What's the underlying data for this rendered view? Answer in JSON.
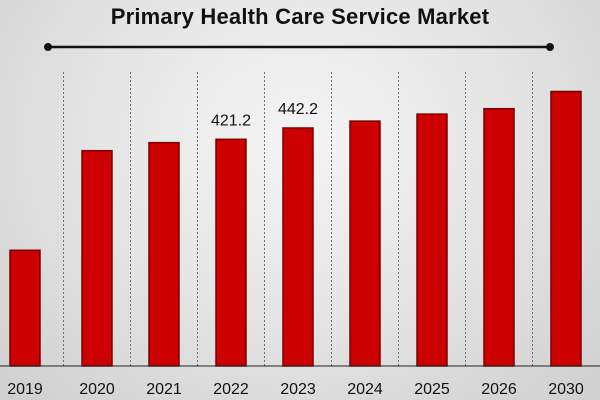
{
  "chart_data": {
    "type": "bar",
    "title": "Primary Health Care Service Market",
    "categories": [
      "2019",
      "2020",
      "2021",
      "2022",
      "2023",
      "2024",
      "2025",
      "2026",
      "2030"
    ],
    "values": [
      215,
      400,
      415,
      421.2,
      442.2,
      455,
      468,
      478,
      510
    ],
    "data_labels": [
      "",
      "",
      "",
      "421.2",
      "442.2",
      "",
      "",
      "",
      ""
    ],
    "ylim": [
      0,
      680
    ],
    "xlabel": "",
    "ylabel": "",
    "grid": "vertical-dashed",
    "bar_color": "#cc0000",
    "bar_edge_color": "#7a0000",
    "legend": "none"
  }
}
